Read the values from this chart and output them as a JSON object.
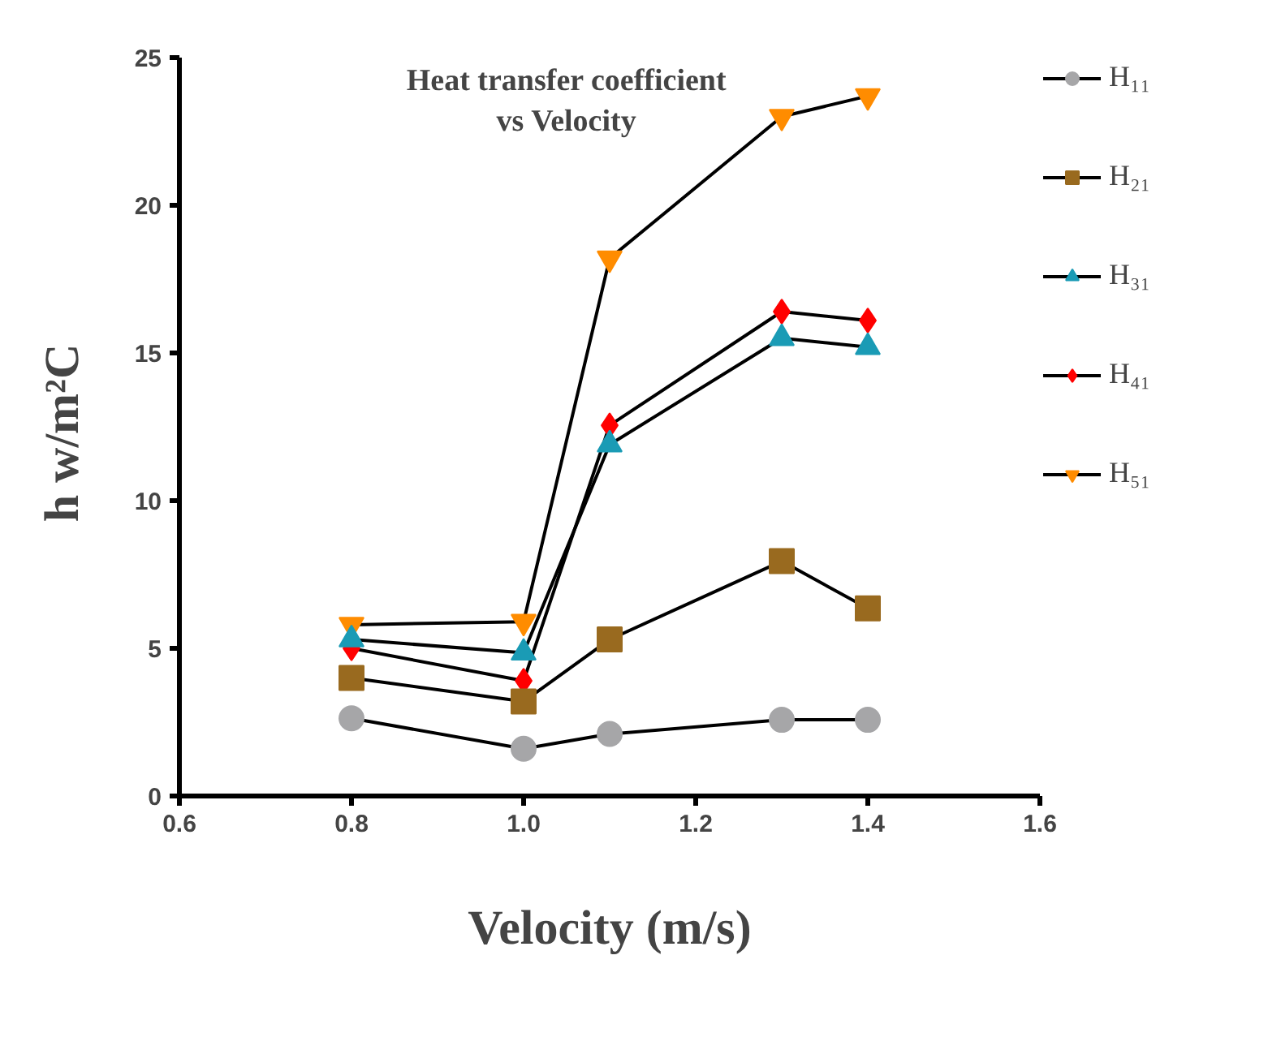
{
  "chart_data": {
    "type": "line",
    "title": "Heat transfer coefficient\nvs Velocity",
    "xlabel": "Velocity (m/s)",
    "ylabel": "h  w/m²C",
    "x": [
      0.8,
      1.0,
      1.1,
      1.3,
      1.4
    ],
    "xlim": [
      0.6,
      1.6
    ],
    "xticks": [
      {
        "value": 0.6,
        "label": "0.6"
      },
      {
        "value": 0.8,
        "label": "0.8"
      },
      {
        "value": 1.0,
        "label": "1.0"
      },
      {
        "value": 1.2,
        "label": "1.2"
      },
      {
        "value": 1.4,
        "label": "1.4"
      },
      {
        "value": 1.6,
        "label": "1.6"
      }
    ],
    "ylim": [
      0,
      25
    ],
    "yticks": [
      0,
      5,
      10,
      15,
      20,
      25
    ],
    "grid": false,
    "legend": "top right",
    "series": [
      {
        "name": "H₁₁",
        "color": "#a6a6a8",
        "marker": "circle",
        "values": [
          2.63,
          1.6,
          2.1,
          2.58,
          2.58
        ]
      },
      {
        "name": "H₂₁",
        "color": "#996a1f",
        "marker": "square",
        "values": [
          4.0,
          3.2,
          5.3,
          7.95,
          6.35
        ]
      },
      {
        "name": "H₃₁",
        "color": "#1a9bb5",
        "marker": "triangle",
        "values": [
          5.3,
          4.85,
          11.9,
          15.5,
          15.2
        ]
      },
      {
        "name": "H₄₁",
        "color": "#ff0000",
        "marker": "diamond",
        "values": [
          5.0,
          3.9,
          12.55,
          16.4,
          16.1
        ]
      },
      {
        "name": "H₅₁",
        "color": "#ff8c00",
        "marker": "triangle",
        "values": [
          5.8,
          5.9,
          18.2,
          23.0,
          23.7
        ]
      }
    ]
  }
}
